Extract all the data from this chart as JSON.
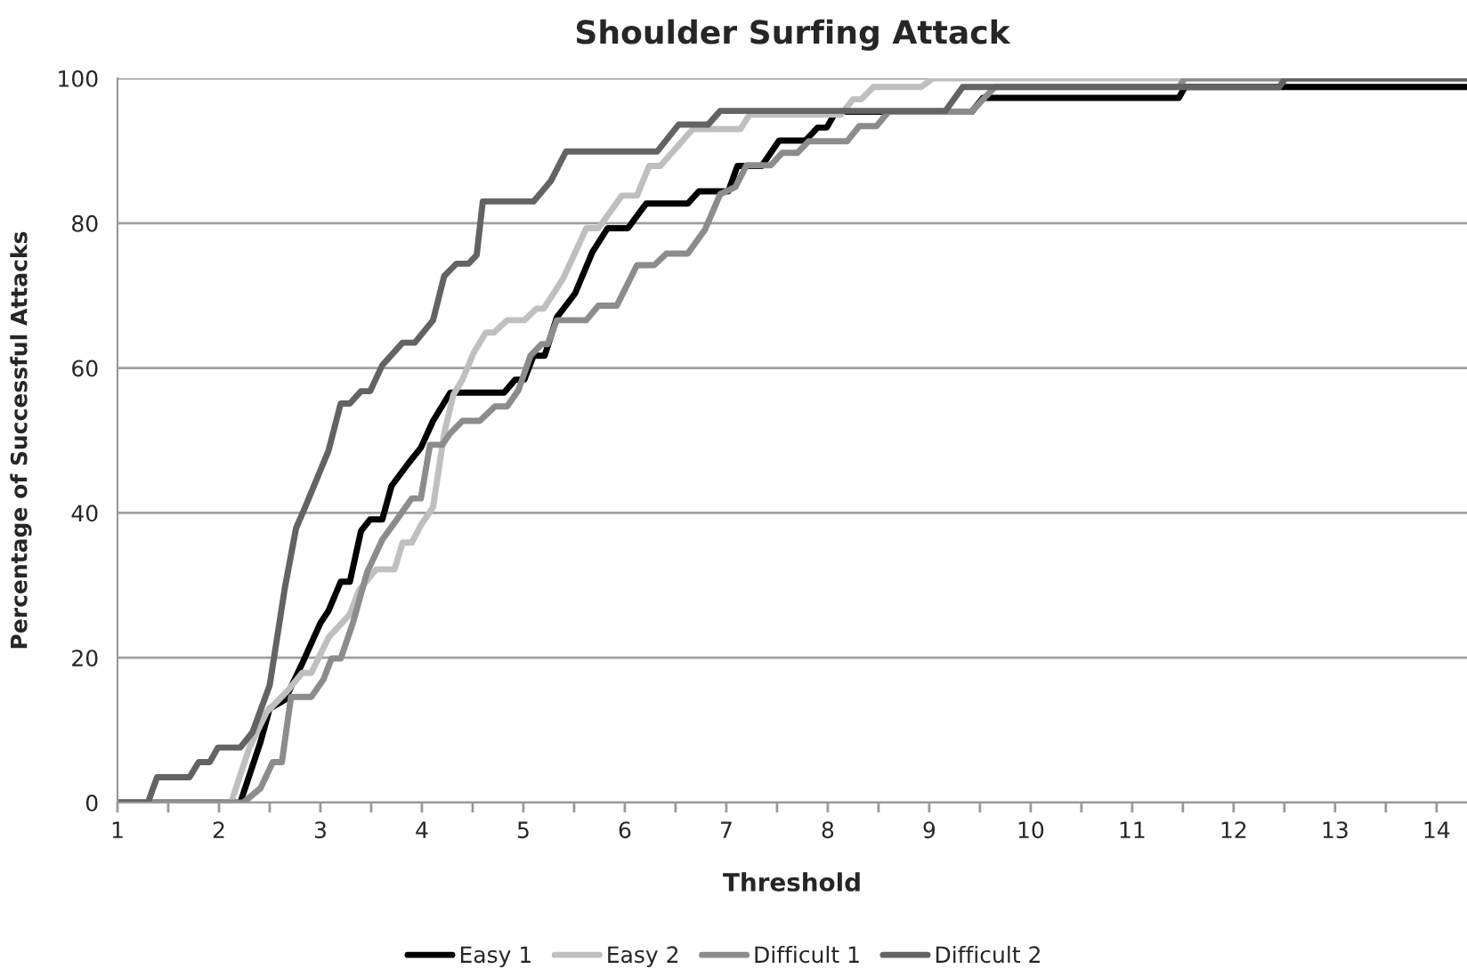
{
  "chart_data": {
    "type": "line",
    "title": "Shoulder Surfing Attack",
    "xlabel": "Threshold",
    "ylabel": "Percentage of Successful Attacks",
    "xlim": [
      1,
      14.3
    ],
    "ylim": [
      0,
      100
    ],
    "xticks": [
      1,
      {
        "value": 1.5,
        "label": null
      },
      2,
      {
        "value": 2.5,
        "label": null
      },
      3,
      {
        "value": 3.5,
        "label": null
      },
      4,
      {
        "value": 4.5,
        "label": null
      },
      5,
      {
        "value": 5.5,
        "label": null
      },
      6,
      {
        "value": 6.5,
        "label": null
      },
      7,
      {
        "value": 7.5,
        "label": null
      },
      8,
      {
        "value": 8.5,
        "label": null
      },
      9,
      {
        "value": 9.5,
        "label": null
      },
      10,
      {
        "value": 10.5,
        "label": null
      },
      11,
      {
        "value": 11.5,
        "label": null
      },
      12,
      {
        "value": 12.5,
        "label": null
      },
      13,
      {
        "value": 13.5,
        "label": null
      },
      14
    ],
    "yticks": [
      0,
      20,
      40,
      60,
      80,
      100
    ],
    "grid": "y",
    "legend": "bottom",
    "marker": "none",
    "line_style": "solid",
    "series": [
      {
        "name": "Easy 1",
        "color": "#000000",
        "x": [
          1,
          2.21,
          2.41,
          2.5,
          2.65,
          2.82,
          3.0,
          3.08,
          3.2,
          3.29,
          3.4,
          3.49,
          3.61,
          3.7,
          3.87,
          3.99,
          4.11,
          4.28,
          4.81,
          4.92,
          5.01,
          5.1,
          5.21,
          5.33,
          5.51,
          5.68,
          5.83,
          6.03,
          6.21,
          6.62,
          6.73,
          7.02,
          7.11,
          7.35,
          7.52,
          7.78,
          7.9,
          7.99,
          8.08,
          9.42,
          9.53,
          11.46,
          11.52,
          14.3
        ],
        "values": [
          0,
          0,
          8.4,
          13.0,
          14.2,
          19.2,
          24.8,
          26.5,
          30.5,
          30.5,
          37.5,
          39.1,
          39.1,
          43.7,
          46.9,
          49.0,
          52.7,
          56.6,
          56.6,
          58.4,
          58.4,
          61.7,
          61.7,
          67.0,
          70.3,
          76.0,
          79.3,
          79.3,
          82.7,
          82.7,
          84.4,
          84.4,
          87.9,
          87.9,
          91.4,
          91.4,
          93.2,
          93.2,
          95.4,
          95.4,
          97.3,
          97.3,
          98.8,
          98.8
        ]
      },
      {
        "name": "Easy 2",
        "color": "#bfbfbf",
        "x": [
          1,
          2.12,
          2.3,
          2.47,
          2.68,
          2.82,
          2.91,
          3.08,
          3.29,
          3.38,
          3.55,
          3.73,
          3.81,
          3.9,
          3.99,
          4.11,
          4.22,
          4.31,
          4.4,
          4.51,
          4.63,
          4.71,
          4.84,
          5.01,
          5.13,
          5.2,
          5.39,
          5.62,
          5.74,
          5.97,
          6.12,
          6.24,
          6.35,
          6.5,
          6.67,
          7.14,
          7.23,
          8.13,
          8.25,
          8.33,
          8.45,
          8.92,
          9.04,
          14.3
        ],
        "values": [
          0,
          0,
          7.6,
          12.5,
          15.5,
          17.9,
          17.9,
          22.8,
          26.0,
          29.3,
          32.2,
          32.2,
          35.9,
          35.9,
          38.3,
          40.8,
          51.0,
          56.3,
          58.4,
          62.1,
          64.9,
          64.9,
          66.6,
          66.6,
          68.2,
          68.2,
          72.3,
          79.3,
          79.3,
          83.8,
          83.8,
          87.9,
          87.9,
          90.3,
          93.0,
          93.0,
          95.0,
          95.0,
          97.1,
          97.1,
          98.8,
          98.8,
          100,
          100
        ]
      },
      {
        "name": "Difficult 1",
        "color": "#8c8c8c",
        "x": [
          1,
          2.24,
          2.41,
          2.53,
          2.62,
          2.71,
          2.91,
          3.03,
          3.11,
          3.2,
          3.32,
          3.46,
          3.61,
          3.78,
          3.9,
          3.99,
          4.08,
          4.2,
          4.28,
          4.4,
          4.57,
          4.72,
          4.84,
          4.95,
          5.07,
          5.18,
          5.24,
          5.33,
          5.62,
          5.74,
          5.92,
          6.12,
          6.29,
          6.41,
          6.62,
          6.79,
          6.94,
          7.09,
          7.2,
          7.44,
          7.55,
          7.7,
          7.81,
          8.19,
          8.31,
          8.48,
          8.6,
          9.42,
          9.53,
          9.65,
          11.46,
          11.52,
          14.3
        ],
        "values": [
          0,
          0,
          2.0,
          5.6,
          5.6,
          14.6,
          14.6,
          17.0,
          19.9,
          19.9,
          24.8,
          31.8,
          36.3,
          39.6,
          42.0,
          42.0,
          49.4,
          49.4,
          51.0,
          52.7,
          52.7,
          54.7,
          54.7,
          56.9,
          61.7,
          63.3,
          63.3,
          66.6,
          66.6,
          68.6,
          68.6,
          74.2,
          74.2,
          75.8,
          75.8,
          79.1,
          84.0,
          85.0,
          88.0,
          88.0,
          89.7,
          89.7,
          91.3,
          91.3,
          93.4,
          93.4,
          95.4,
          95.4,
          97.1,
          98.8,
          98.8,
          100,
          100
        ]
      },
      {
        "name": "Difficult 2",
        "color": "#636363",
        "x": [
          1,
          1.3,
          1.39,
          1.71,
          1.8,
          1.91,
          1.99,
          2.21,
          2.33,
          2.5,
          2.56,
          2.65,
          2.76,
          2.85,
          3.08,
          3.2,
          3.29,
          3.4,
          3.49,
          3.61,
          3.81,
          3.93,
          4.11,
          4.22,
          4.34,
          4.46,
          4.54,
          4.6,
          5.1,
          5.27,
          5.42,
          6.32,
          6.53,
          6.82,
          6.94,
          9.16,
          9.33,
          12.45,
          12.51,
          14.3
        ],
        "values": [
          0,
          0,
          3.5,
          3.5,
          5.6,
          5.6,
          7.6,
          7.6,
          9.7,
          16.2,
          21.6,
          29.7,
          37.9,
          40.8,
          48.6,
          55.1,
          55.1,
          56.8,
          56.8,
          60.4,
          63.5,
          63.5,
          66.6,
          72.7,
          74.4,
          74.4,
          75.6,
          83.0,
          83.0,
          85.8,
          89.9,
          89.9,
          93.6,
          93.6,
          95.5,
          95.5,
          98.8,
          98.8,
          100,
          100
        ]
      }
    ]
  }
}
